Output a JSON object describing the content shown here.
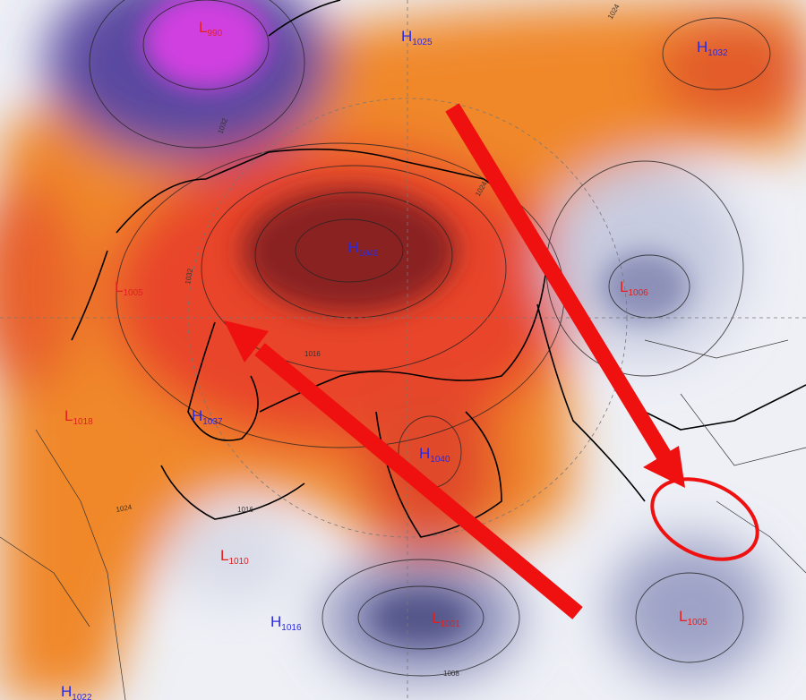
{
  "pressure_centers": [
    {
      "letter": "L",
      "value": "990"
    },
    {
      "letter": "H",
      "value": "1025"
    },
    {
      "letter": "H",
      "value": "1032"
    },
    {
      "letter": "H",
      "value": "1049"
    },
    {
      "letter": "L",
      "value": "1005"
    },
    {
      "letter": "L",
      "value": "1006"
    },
    {
      "letter": "L",
      "value": "1018"
    },
    {
      "letter": "H",
      "value": "1037"
    },
    {
      "letter": "H",
      "value": "1040"
    },
    {
      "letter": "L",
      "value": "1010"
    },
    {
      "letter": "L",
      "value": "1001"
    },
    {
      "letter": "H",
      "value": "1016"
    },
    {
      "letter": "L",
      "value": "1005"
    },
    {
      "letter": "H",
      "value": "1022"
    }
  ],
  "isobar_labels": [
    "1024",
    "1032",
    "1016",
    "1008",
    "1024",
    "1016",
    "1032",
    "1024"
  ]
}
